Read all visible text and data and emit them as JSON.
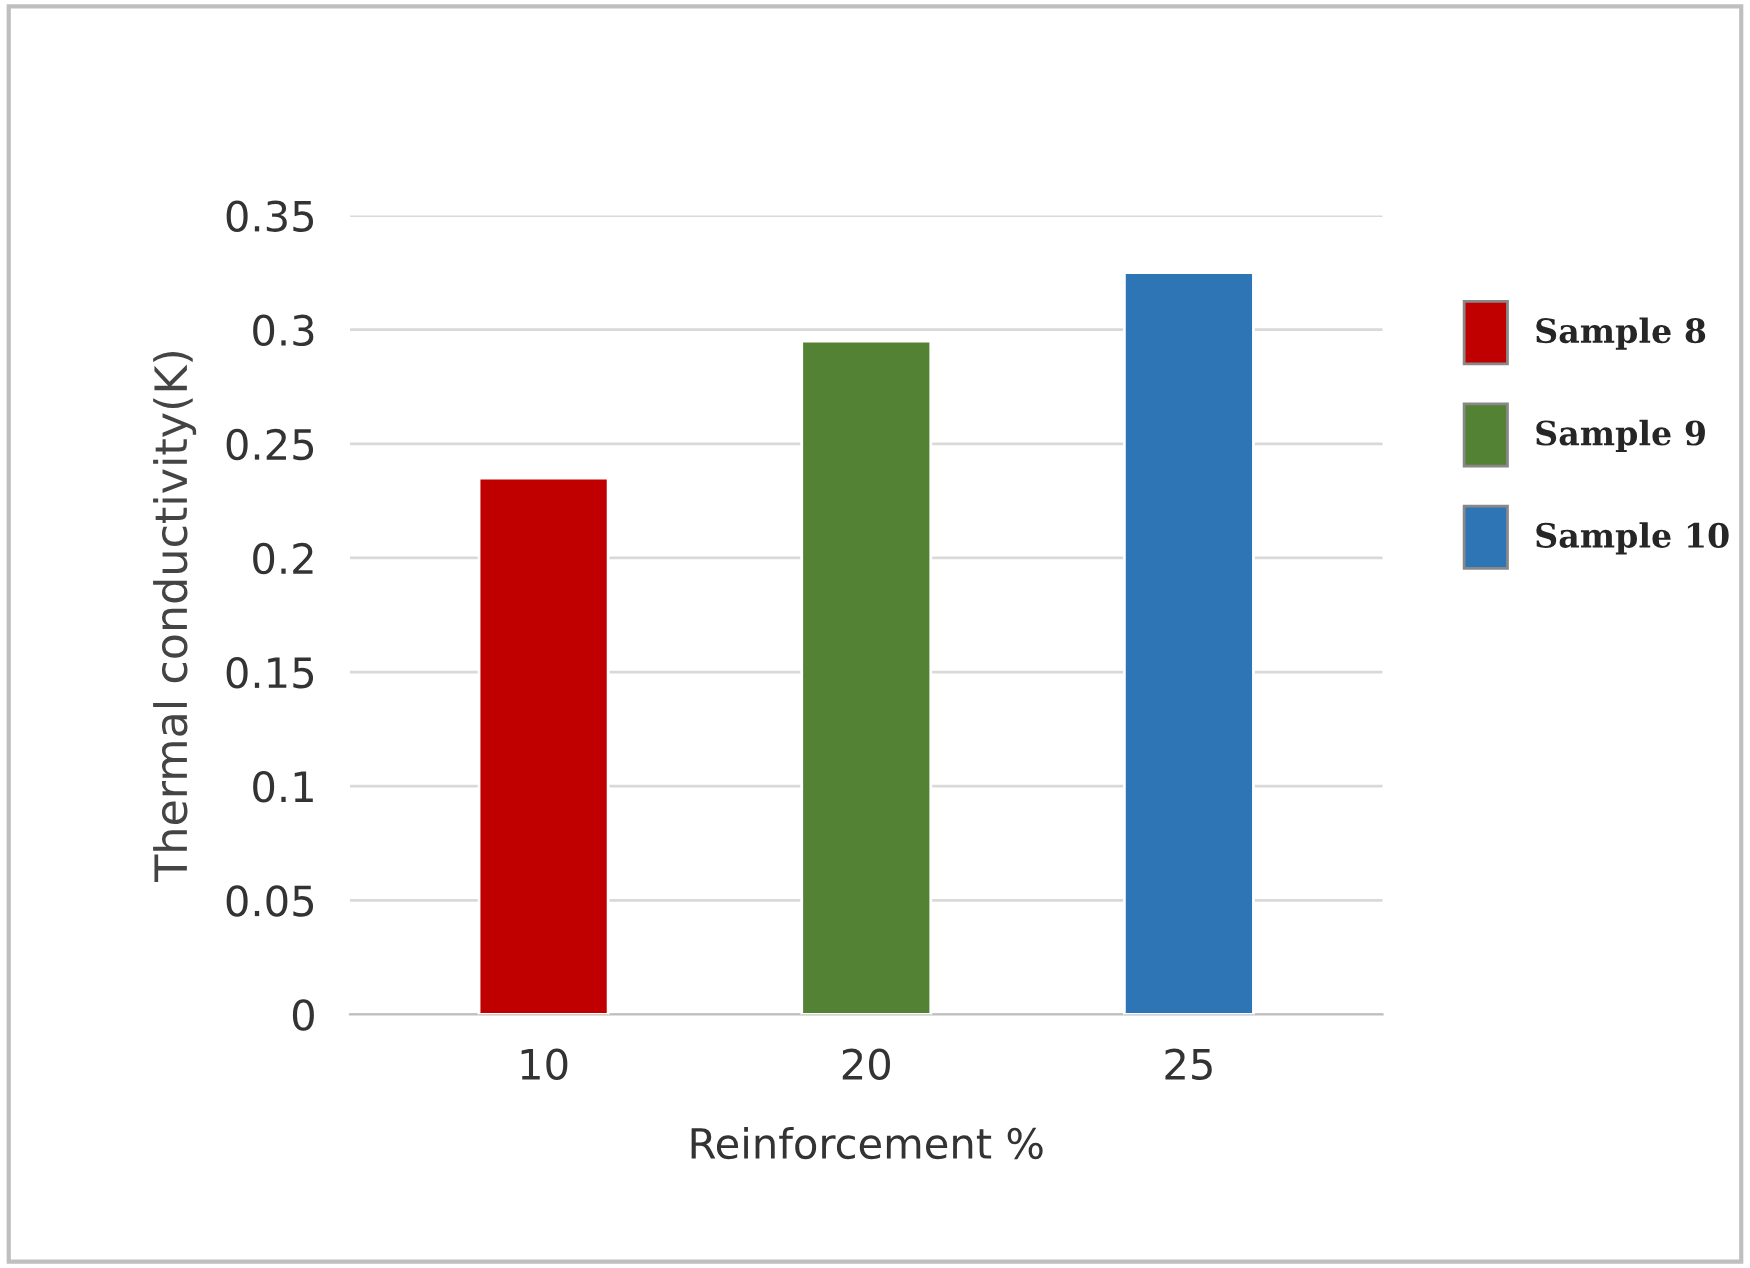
{
  "chart_data": {
    "type": "bar",
    "xlabel": "Reinforcement %",
    "ylabel": "Thermal conductivity(K)",
    "categories": [
      "10",
      "20",
      "25"
    ],
    "series": [
      {
        "name": "Sample 8",
        "color": "#c00000",
        "values": [
          0.235,
          null,
          null
        ]
      },
      {
        "name": "Sample 9",
        "color": "#548235",
        "values": [
          null,
          0.295,
          null
        ]
      },
      {
        "name": "Sample 10",
        "color": "#2e75b6",
        "values": [
          null,
          null,
          0.325
        ]
      }
    ],
    "ylim": [
      0,
      0.35
    ],
    "yticks": [
      {
        "value": 0,
        "label": "0"
      },
      0.05,
      0.1,
      0.15,
      0.2,
      0.25,
      0.3,
      0.35
    ],
    "grid": "y",
    "legend": "right"
  }
}
